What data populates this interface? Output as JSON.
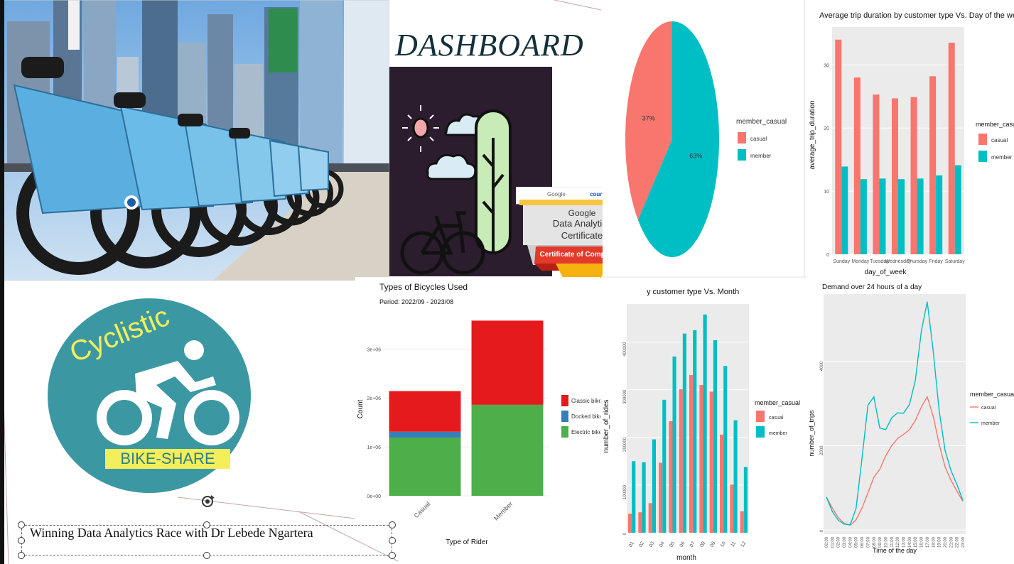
{
  "slide": {
    "title": "DASHBOARD",
    "caption": "Winning Data Analytics Race with Dr Lebede Ngartera"
  },
  "logo": {
    "brand": "Cyclistic",
    "tagline": "BIKE-SHARE"
  },
  "certificate": {
    "issuer1": "Google",
    "issuer2": "coursera",
    "line1": "Google",
    "line2": "Data Analytics",
    "line3": "Certificate",
    "ribbon": "Certificate of Completion"
  },
  "colors": {
    "casual": "#F8766D",
    "member": "#00BFC4",
    "classic": "#E41A1C",
    "docked": "#377EB8",
    "electric": "#4DAF4A",
    "panel_bg": "#EBEBEB",
    "title_dark": "#13303a",
    "logo_teal": "#3b98a2",
    "logo_yellow": "#f3ee5a"
  },
  "chart_data": [
    {
      "id": "pie",
      "type": "pie",
      "title": "",
      "legend_title": "member_casual",
      "legend_position": "right",
      "slices": [
        {
          "name": "casual",
          "value": 37,
          "label": "37%"
        },
        {
          "name": "member",
          "value": 63,
          "label": "63%"
        }
      ]
    },
    {
      "id": "duration",
      "type": "bar",
      "title": "Average trip duration by customer type Vs. Day of the week",
      "xlabel": "day_of_week",
      "ylabel": "average_trip_duration",
      "legend_title": "member_casual",
      "legend_position": "right",
      "ylim": [
        0,
        36
      ],
      "yticks": [
        0,
        10,
        20,
        30
      ],
      "categories": [
        "Sunday",
        "Monday",
        "Tuesday",
        "Wednesday",
        "Thursday",
        "Friday",
        "Saturday"
      ],
      "series": [
        {
          "name": "casual",
          "values": [
            34.0,
            28.0,
            25.3,
            24.7,
            24.9,
            28.2,
            33.5
          ]
        },
        {
          "name": "member",
          "values": [
            13.9,
            11.9,
            12.0,
            11.9,
            12.0,
            12.5,
            14.1
          ]
        }
      ]
    },
    {
      "id": "types",
      "type": "bar",
      "stacked": true,
      "title": "Types of Bicycles Used",
      "subtitle": "Period: 2022/09 - 2023/08",
      "xlabel": "Type of Rider",
      "ylabel": "Count",
      "ylim": [
        0,
        3600000
      ],
      "yticks": [
        0,
        1000000,
        2000000,
        3000000
      ],
      "ytick_labels": [
        "0e+00",
        "1e+06",
        "2e+06",
        "3e+06"
      ],
      "categories": [
        "Casual",
        "Member"
      ],
      "series": [
        {
          "name": "Electric bike",
          "values": [
            1190000,
            1860000
          ]
        },
        {
          "name": "Docked bike",
          "values": [
            120000,
            0
          ]
        },
        {
          "name": "Classic bike",
          "values": [
            830000,
            1720000
          ]
        }
      ],
      "legend_order": [
        "Classic bike",
        "Docked bike",
        "Electric bike"
      ],
      "legend_position": "right"
    },
    {
      "id": "monthly",
      "type": "bar",
      "title": "y customer type Vs. Month",
      "xlabel": "month",
      "ylabel": "number_of_rides",
      "legend_title": "member_casual",
      "legend_position": "right",
      "ylim": [
        0,
        480000
      ],
      "yticks": [
        0,
        100000,
        200000,
        300000,
        400000
      ],
      "ytick_labels": [
        "0",
        "100000",
        "200000",
        "300000",
        "400000"
      ],
      "categories": [
        "01",
        "02",
        "03",
        "04",
        "05",
        "06",
        "07",
        "08",
        "09",
        "10",
        "11",
        "12"
      ],
      "series": [
        {
          "name": "casual",
          "values": [
            40000,
            43000,
            62000,
            147000,
            234000,
            301000,
            331000,
            310000,
            296000,
            206000,
            101000,
            45000
          ]
        },
        {
          "name": "member",
          "values": [
            150000,
            148000,
            196000,
            279000,
            370000,
            418000,
            425000,
            458000,
            404000,
            350000,
            236000,
            138000
          ]
        }
      ]
    },
    {
      "id": "hourly",
      "type": "line",
      "title": "Demand over 24 hours of a day",
      "xlabel": "Time of the day",
      "ylabel": "number_of_trips",
      "legend_title": "member_casual",
      "legend_position": "right",
      "ylim": [
        -100,
        5600
      ],
      "yticks": [
        0,
        2000,
        4000
      ],
      "x": [
        "00:00",
        "01:00",
        "02:00",
        "03:00",
        "04:00",
        "05:00",
        "06:00",
        "07:00",
        "08:00",
        "09:00",
        "10:00",
        "11:00",
        "12:00",
        "13:00",
        "14:00",
        "15:00",
        "16:00",
        "17:00",
        "18:00",
        "19:00",
        "20:00",
        "21:00",
        "22:00",
        "23:00"
      ],
      "series": [
        {
          "name": "casual",
          "values": [
            780,
            520,
            290,
            160,
            110,
            240,
            520,
            880,
            1250,
            1440,
            1760,
            2000,
            2170,
            2270,
            2380,
            2600,
            2920,
            3160,
            2700,
            2040,
            1500,
            1180,
            920,
            680
          ]
        },
        {
          "name": "member",
          "values": [
            780,
            440,
            230,
            140,
            120,
            510,
            1700,
            2960,
            3160,
            2420,
            2380,
            2660,
            2780,
            2770,
            2980,
            3560,
            4720,
            5420,
            4250,
            2840,
            1890,
            1410,
            1080,
            700
          ]
        }
      ]
    }
  ]
}
